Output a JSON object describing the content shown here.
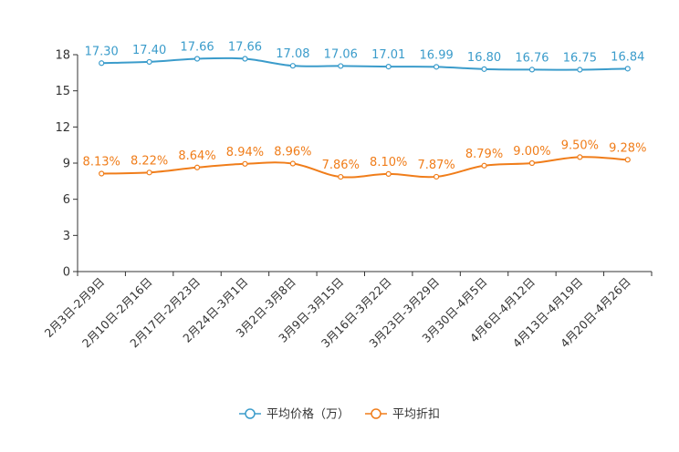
{
  "chart_data": {
    "type": "line",
    "title": "",
    "xlabel": "",
    "ylabel": "",
    "ylim": [
      0,
      18
    ],
    "yticks": [
      0,
      3,
      6,
      9,
      12,
      15,
      18
    ],
    "grid": false,
    "legend_position": "bottom-center",
    "categories": [
      "2月3日-2月9日",
      "2月10日-2月16日",
      "2月17日-2月23日",
      "2月24日-3月1日",
      "3月2日-3月8日",
      "3月9日-3月15日",
      "3月16日-3月22日",
      "3月23日-3月29日",
      "3月30日-4月5日",
      "4月6日-4月12日",
      "4月13日-4月19日",
      "4月20日-4月26日"
    ],
    "series": [
      {
        "name": "平均价格（万）",
        "color": "#3b9ccb",
        "values": [
          17.3,
          17.4,
          17.66,
          17.66,
          17.08,
          17.06,
          17.01,
          16.99,
          16.8,
          16.76,
          16.75,
          16.84
        ],
        "labels": [
          "17.30",
          "17.40",
          "17.66",
          "17.66",
          "17.08",
          "17.06",
          "17.01",
          "16.99",
          "16.80",
          "16.76",
          "16.75",
          "16.84"
        ]
      },
      {
        "name": "平均折扣",
        "color": "#f07d1a",
        "values": [
          8.13,
          8.22,
          8.64,
          8.94,
          8.96,
          7.86,
          8.1,
          7.87,
          8.79,
          9.0,
          9.5,
          9.28
        ],
        "labels": [
          "8.13%",
          "8.22%",
          "8.64%",
          "8.94%",
          "8.96%",
          "7.86%",
          "8.10%",
          "7.87%",
          "8.79%",
          "9.00%",
          "9.50%",
          "9.28%"
        ]
      }
    ]
  }
}
